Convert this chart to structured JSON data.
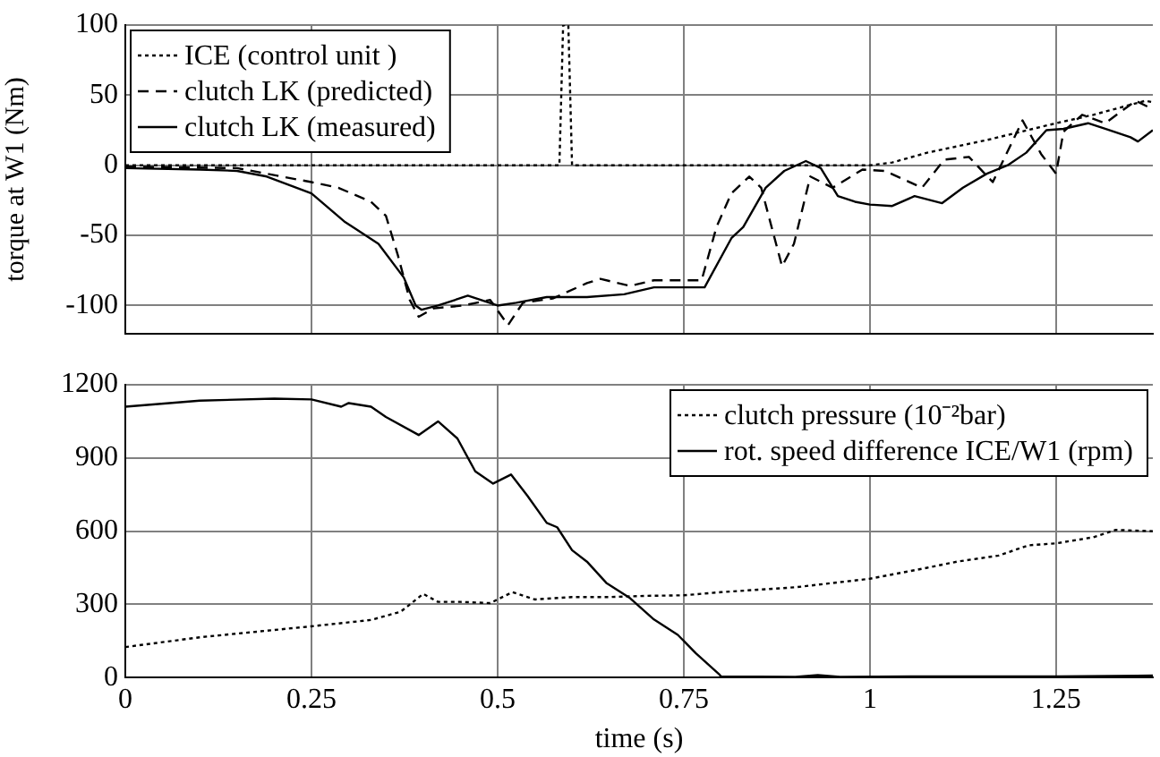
{
  "chart_data": [
    {
      "type": "line",
      "ylabel": "torque at W1 (Nm)",
      "xlim": [
        0,
        1.38
      ],
      "xticks": [
        0,
        0.25,
        0.5,
        0.75,
        1,
        1.25
      ],
      "ylim": [
        -120,
        100
      ],
      "yticks": [
        -100,
        -50,
        0,
        50,
        100
      ],
      "grid": true,
      "legend": "top left",
      "tick_labels": "y",
      "marker": "none",
      "series": [
        {
          "name": "ICE (control unit )",
          "color": "#000000",
          "line_style": "dotted",
          "x": [
            0,
            0.583,
            0.588,
            0.595,
            0.6,
            1.0,
            1.03,
            1.077,
            1.157,
            1.25,
            1.3,
            1.37,
            1.38
          ],
          "values": [
            0,
            0,
            100,
            100,
            0,
            0,
            2,
            9,
            18,
            30,
            36,
            46,
            45
          ]
        },
        {
          "name": "clutch LK (predicted)",
          "color": "#000000",
          "line_style": "dashed",
          "x": [
            0,
            0.15,
            0.25,
            0.286,
            0.33,
            0.35,
            0.366,
            0.382,
            0.394,
            0.414,
            0.454,
            0.49,
            0.514,
            0.534,
            0.574,
            0.62,
            0.638,
            0.678,
            0.71,
            0.774,
            0.794,
            0.814,
            0.838,
            0.854,
            0.882,
            0.898,
            0.92,
            0.95,
            0.99,
            1.02,
            1.07,
            1.1,
            1.133,
            1.165,
            1.205,
            1.23,
            1.25,
            1.26,
            1.285,
            1.316,
            1.357,
            1.38
          ],
          "values": [
            -1,
            -2,
            -12,
            -16,
            -26,
            -36,
            -64,
            -96,
            -108,
            -102,
            -100,
            -96,
            -114,
            -98,
            -95,
            -84,
            -81,
            -86,
            -82,
            -82,
            -44,
            -20,
            -8,
            -16,
            -72,
            -56,
            -8,
            -16,
            -3,
            -4,
            -16,
            4,
            6,
            -12,
            32,
            8,
            -6,
            24,
            36,
            30,
            46,
            40
          ]
        },
        {
          "name": "clutch LK (measured)",
          "color": "#000000",
          "line_style": "solid",
          "x": [
            0,
            0.1,
            0.15,
            0.19,
            0.25,
            0.294,
            0.34,
            0.374,
            0.39,
            0.398,
            0.42,
            0.46,
            0.5,
            0.525,
            0.566,
            0.62,
            0.67,
            0.71,
            0.778,
            0.814,
            0.83,
            0.86,
            0.885,
            0.914,
            0.934,
            0.957,
            0.98,
            1.0,
            1.03,
            1.06,
            1.097,
            1.125,
            1.157,
            1.185,
            1.21,
            1.237,
            1.26,
            1.293,
            1.316,
            1.35,
            1.36,
            1.38
          ],
          "values": [
            -2,
            -3,
            -4,
            -8,
            -20,
            -40,
            -56,
            -80,
            -100,
            -103,
            -100,
            -93,
            -100,
            -98,
            -94,
            -94,
            -92,
            -87,
            -87,
            -52,
            -44,
            -16,
            -4,
            3,
            -2,
            -22,
            -26,
            -28,
            -29,
            -22,
            -27,
            -16,
            -6,
            0,
            9,
            25,
            26,
            30,
            26,
            20,
            17,
            25
          ]
        }
      ]
    },
    {
      "type": "line",
      "xlabel": "time (s)",
      "xlim": [
        0,
        1.38
      ],
      "xticks": [
        0,
        0.25,
        0.5,
        0.75,
        1,
        1.25
      ],
      "ylim": [
        0,
        1200
      ],
      "yticks": [
        0,
        300,
        600,
        900,
        1200
      ],
      "grid": true,
      "legend": "top right",
      "marker": "none",
      "series": [
        {
          "name": "clutch pressure (10⁻²bar)",
          "color": "#000000",
          "line_style": "dotted",
          "x": [
            0,
            0.1,
            0.15,
            0.2,
            0.25,
            0.33,
            0.37,
            0.4,
            0.42,
            0.45,
            0.49,
            0.52,
            0.55,
            0.6,
            0.65,
            0.7,
            0.75,
            0.8,
            0.9,
            1.0,
            1.077,
            1.117,
            1.173,
            1.213,
            1.25,
            1.3,
            1.33,
            1.38
          ],
          "values": [
            125,
            165,
            180,
            195,
            210,
            236,
            270,
            343,
            310,
            310,
            305,
            350,
            320,
            330,
            330,
            335,
            337,
            350,
            370,
            405,
            450,
            475,
            500,
            542,
            550,
            575,
            605,
            600
          ]
        },
        {
          "name": "rot. speed difference ICE/W1 (rpm)",
          "color": "#000000",
          "line_style": "solid",
          "x": [
            0,
            0.1,
            0.2,
            0.25,
            0.29,
            0.3,
            0.33,
            0.35,
            0.394,
            0.42,
            0.446,
            0.47,
            0.494,
            0.518,
            0.54,
            0.566,
            0.58,
            0.6,
            0.62,
            0.646,
            0.678,
            0.71,
            0.742,
            0.766,
            0.798,
            0.8,
            0.9,
            0.93,
            0.96,
            1.1,
            1.25,
            1.38
          ],
          "values": [
            1110,
            1135,
            1143,
            1140,
            1110,
            1125,
            1110,
            1068,
            994,
            1050,
            980,
            845,
            795,
            832,
            745,
            634,
            616,
            522,
            475,
            388,
            325,
            238,
            175,
            100,
            12,
            5,
            3,
            10,
            3,
            5,
            5,
            8
          ]
        }
      ]
    }
  ]
}
